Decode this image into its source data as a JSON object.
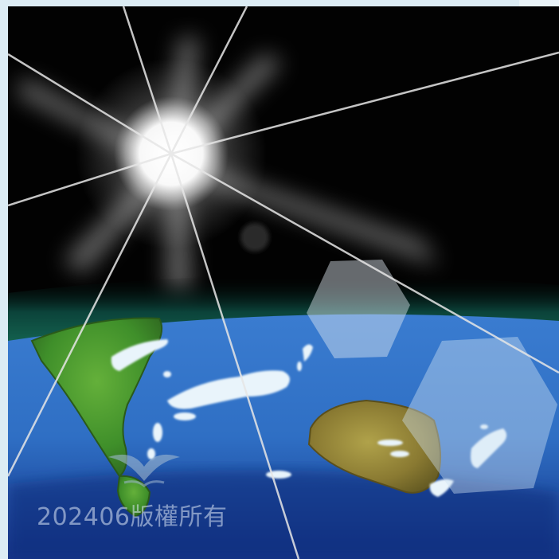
{
  "image": {
    "subject": "sun-over-earth-horizon",
    "watermark": "202406版權所有"
  },
  "colors": {
    "sky": "#020202",
    "atmosphere": "#0e5a4c",
    "ocean": "#2f6fc4",
    "land_green": "#3f8f2a",
    "land_brown": "#8a7a32",
    "cloud": "#e9f4fb",
    "sun": "#ffffff",
    "frame": "#dcecf4"
  }
}
